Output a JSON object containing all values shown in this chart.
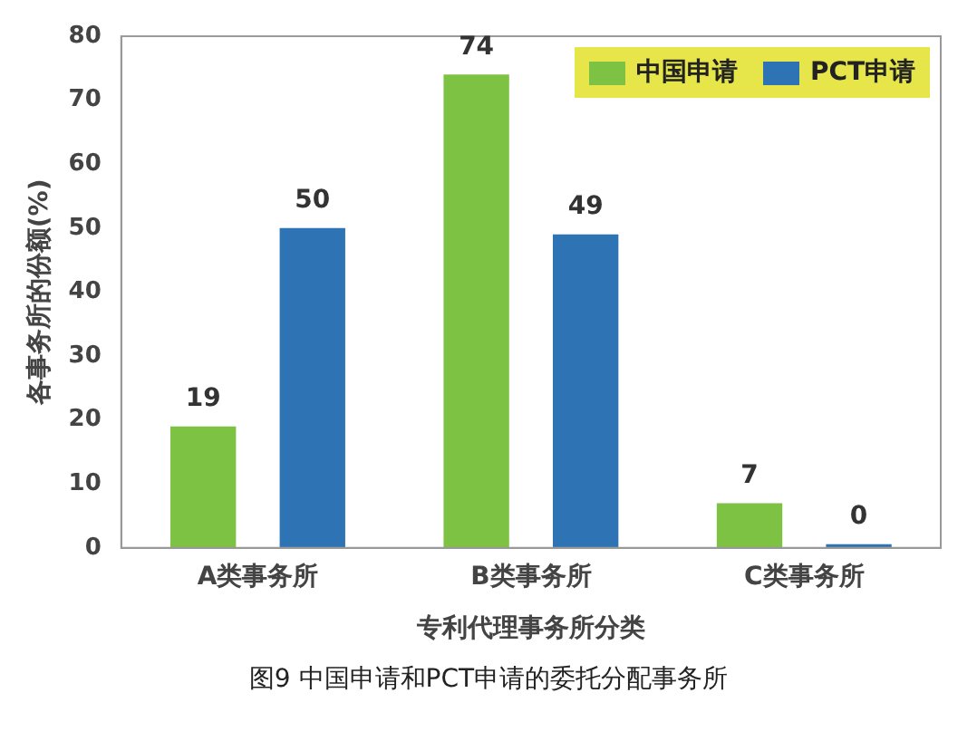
{
  "chart_data": {
    "type": "bar",
    "xlabel": "专利代理事务所分类",
    "ylabel": "各事务所的份额(%)",
    "categories": [
      "A类事务所",
      "B类事务所",
      "C类事务所"
    ],
    "series": [
      {
        "name": "中国申请",
        "color": "#7dc242",
        "values": [
          19,
          74,
          7
        ]
      },
      {
        "name": "PCT申请",
        "color": "#2e74b5",
        "values": [
          50,
          49,
          0
        ]
      }
    ],
    "ylim": [
      0,
      80
    ],
    "yticks": [
      0,
      10,
      20,
      30,
      40,
      50,
      60,
      70,
      80
    ],
    "grid": false,
    "legend": "top right",
    "data_labels": true,
    "annotations": [
      "图9 中国申请和PCT申请的委托分配事务所"
    ]
  }
}
